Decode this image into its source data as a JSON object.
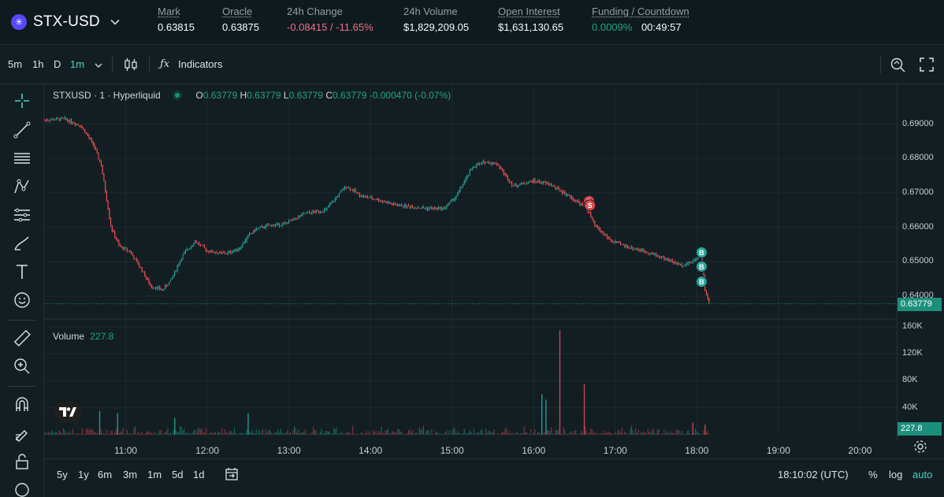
{
  "market": {
    "symbol": "STX-USD",
    "stats": [
      {
        "label": "Mark",
        "value": "0.63815",
        "underline": true
      },
      {
        "label": "Oracle",
        "value": "0.63875",
        "underline": true
      },
      {
        "label": "24h Change",
        "value": "-0.08415 / -11.65%",
        "underline": false
      },
      {
        "label": "24h Volume",
        "value": "$1,829,209.05",
        "underline": false
      },
      {
        "label": "Open Interest",
        "value": "$1,631,130.65",
        "underline": true
      },
      {
        "label": "Funding / Countdown",
        "value_a": "0.0009%",
        "value_b": "00:49:57",
        "underline": true
      }
    ]
  },
  "toolbar": {
    "intervals": [
      "5m",
      "1h",
      "D",
      "1m"
    ],
    "active_interval": "1m",
    "indicators_label": "Indicators"
  },
  "legend": {
    "title": "STXUSD · 1 · Hyperliquid",
    "o_label": "O",
    "o": "0.63779",
    "h_label": "H",
    "h": "0.63779",
    "l_label": "L",
    "l": "0.63779",
    "c_label": "C",
    "c": "0.63779",
    "change": "-0.000470 (-0.07%)"
  },
  "volume_legend": {
    "label": "Volume",
    "value": "227.8"
  },
  "bottom": {
    "ranges": [
      "5y",
      "1y",
      "6m",
      "3m",
      "1m",
      "5d",
      "1d"
    ],
    "clock": "18:10:02 (UTC)",
    "pct": "%",
    "log": "log",
    "auto": "auto"
  },
  "colors": {
    "up": "#26a69a",
    "down": "#ef5350",
    "accent": "#50d2c1",
    "last_price": "#1c8f7c"
  },
  "chart_data": {
    "type": "candlestick",
    "x_ticks": [
      "11:00",
      "12:00",
      "13:00",
      "14:00",
      "15:00",
      "16:00",
      "17:00",
      "18:00",
      "19:00",
      "20:00"
    ],
    "x_tick_hours": [
      11,
      12,
      13,
      14,
      15,
      16,
      17,
      18,
      19,
      20
    ],
    "x_range_hours": [
      10.0,
      20.45
    ],
    "y_ticks": [
      "0.69000",
      "0.68000",
      "0.67000",
      "0.66000",
      "0.65000",
      "0.64000"
    ],
    "ylim": [
      0.6345,
      0.6995
    ],
    "last_price": "0.63779",
    "volume_ticks": [
      "160K",
      "120K",
      "80K",
      "40K"
    ],
    "volume_tick_values": [
      160000,
      120000,
      80000,
      40000
    ],
    "volume_max": 168000,
    "last_volume": "227.8",
    "price_path": [
      [
        10.0,
        0.6912
      ],
      [
        10.25,
        0.6915
      ],
      [
        10.45,
        0.6895
      ],
      [
        10.6,
        0.6842
      ],
      [
        10.7,
        0.678
      ],
      [
        10.82,
        0.66
      ],
      [
        10.92,
        0.6545
      ],
      [
        11.05,
        0.653
      ],
      [
        11.2,
        0.6475
      ],
      [
        11.3,
        0.643
      ],
      [
        11.45,
        0.6418
      ],
      [
        11.55,
        0.6445
      ],
      [
        11.7,
        0.652
      ],
      [
        11.85,
        0.656
      ],
      [
        12.0,
        0.6532
      ],
      [
        12.15,
        0.6525
      ],
      [
        12.25,
        0.6525
      ],
      [
        12.4,
        0.654
      ],
      [
        12.5,
        0.6575
      ],
      [
        12.6,
        0.6595
      ],
      [
        12.75,
        0.6605
      ],
      [
        12.95,
        0.661
      ],
      [
        13.2,
        0.664
      ],
      [
        13.45,
        0.665
      ],
      [
        13.7,
        0.672
      ],
      [
        13.9,
        0.669
      ],
      [
        14.1,
        0.668
      ],
      [
        14.3,
        0.6665
      ],
      [
        14.5,
        0.666
      ],
      [
        14.7,
        0.6655
      ],
      [
        14.9,
        0.6655
      ],
      [
        15.05,
        0.669
      ],
      [
        15.25,
        0.6775
      ],
      [
        15.4,
        0.679
      ],
      [
        15.55,
        0.6785
      ],
      [
        15.75,
        0.672
      ],
      [
        16.0,
        0.6735
      ],
      [
        16.2,
        0.6725
      ],
      [
        16.45,
        0.6688
      ],
      [
        16.65,
        0.6655
      ],
      [
        16.75,
        0.6605
      ],
      [
        16.95,
        0.656
      ],
      [
        17.2,
        0.654
      ],
      [
        17.4,
        0.6528
      ],
      [
        17.6,
        0.651
      ],
      [
        17.8,
        0.649
      ],
      [
        17.95,
        0.65
      ],
      [
        18.05,
        0.6525
      ],
      [
        18.1,
        0.642
      ],
      [
        18.15,
        0.6378
      ]
    ],
    "volume_spikes": [
      [
        16.1,
        60000
      ],
      [
        16.15,
        52000
      ],
      [
        16.32,
        155000
      ],
      [
        16.62,
        75000
      ],
      [
        10.68,
        35000
      ],
      [
        10.9,
        32000
      ],
      [
        11.6,
        25000
      ],
      [
        12.5,
        32000
      ],
      [
        17.95,
        18000
      ],
      [
        18.1,
        15000
      ]
    ],
    "trade_markers": [
      {
        "label": "S",
        "time": 16.68,
        "price": 0.6676,
        "side": "sell"
      },
      {
        "label": "S",
        "time": 16.69,
        "price": 0.6664,
        "side": "sell"
      },
      {
        "label": "B",
        "time": 18.02,
        "price": 0.6527,
        "side": "buy"
      },
      {
        "label": "B",
        "time": 18.02,
        "price": 0.6486,
        "side": "buy"
      },
      {
        "label": "B",
        "time": 18.02,
        "price": 0.6442,
        "side": "buy"
      }
    ]
  }
}
